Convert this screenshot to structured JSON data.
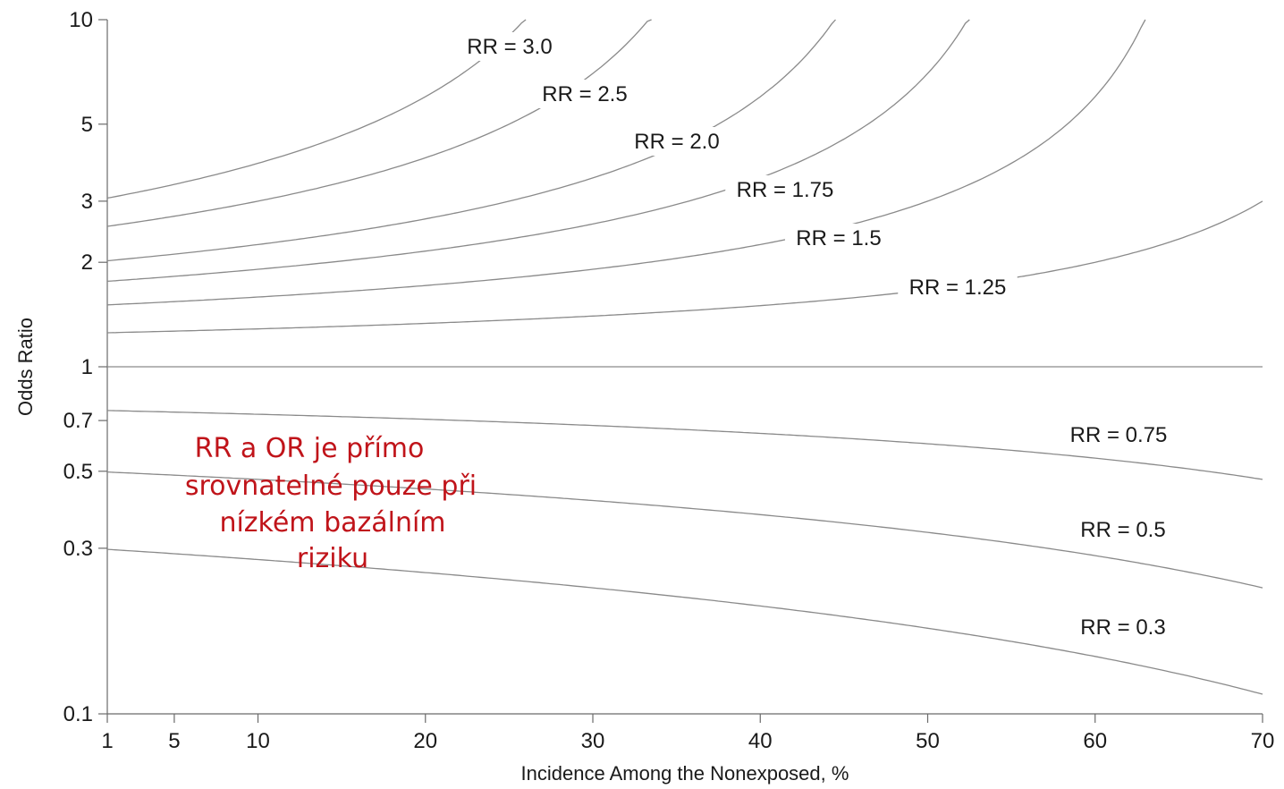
{
  "chart_data": {
    "type": "line",
    "title": "",
    "xlabel": "Incidence Among the Nonexposed, %",
    "ylabel": "Odds Ratio",
    "x_ticks": [
      1,
      5,
      10,
      20,
      30,
      40,
      50,
      60,
      70
    ],
    "y_ticks": [
      0.1,
      0.3,
      0.5,
      0.7,
      1,
      2,
      3,
      5,
      10
    ],
    "y_tick_labels": [
      "0.1",
      "0.3",
      "0.5",
      "0.7",
      "1",
      "2",
      "3",
      "5",
      "10"
    ],
    "x_tick_labels": [
      "1",
      "5",
      "10",
      "20",
      "30",
      "40",
      "50",
      "60",
      "70"
    ],
    "xlim": [
      1,
      70
    ],
    "ylim": [
      0.1,
      10
    ],
    "y_scale": "log",
    "grid": false,
    "series": [
      {
        "name": "RR = 3.0",
        "rr": 3.0
      },
      {
        "name": "RR = 2.5",
        "rr": 2.5
      },
      {
        "name": "RR = 2.0",
        "rr": 2.0
      },
      {
        "name": "RR = 1.75",
        "rr": 1.75
      },
      {
        "name": "RR = 1.5",
        "rr": 1.5
      },
      {
        "name": "RR = 1.25",
        "rr": 1.25
      },
      {
        "name": "",
        "rr": 1.0
      },
      {
        "name": "RR = 0.75",
        "rr": 0.75
      },
      {
        "name": "RR = 0.5",
        "rr": 0.5
      },
      {
        "name": "RR = 0.3",
        "rr": 0.3
      }
    ],
    "annotation_lines": [
      "RR a OR je přímo",
      "srovnatelné pouze při",
      "nízkém bazálním",
      "riziku"
    ]
  }
}
